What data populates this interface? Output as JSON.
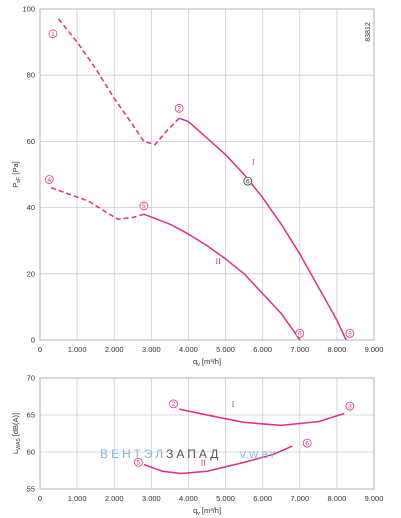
{
  "figure_id": "83812",
  "watermark": {
    "part1": "ВЕНТЭЛ",
    "part2": "ЗАПАД",
    "part3": "V.W.BY",
    "color1": "#7fb8e0",
    "color2": "#555555"
  },
  "colors": {
    "curve": "#d63384",
    "grid": "#cccccc",
    "axis": "#333333"
  },
  "chart_data": [
    {
      "type": "line",
      "ylabel": "P",
      "ylabel_sub": "sF",
      "ylabel_unit": "[Pa]",
      "xlabel": "q",
      "xlabel_sub": "v",
      "xlabel_unit": "[m³/h]",
      "xlim": [
        0,
        9000
      ],
      "ylim": [
        0,
        100
      ],
      "xticks": [
        0,
        1000,
        2000,
        3000,
        4000,
        5000,
        6000,
        7000,
        8000,
        9000
      ],
      "xtick_labels": [
        "0",
        "1.000",
        "2.000",
        "3.000",
        "4.000",
        "5.000",
        "6.000",
        "7.000",
        "8.000",
        "9.000"
      ],
      "yticks": [
        0,
        20,
        40,
        60,
        80,
        100
      ],
      "ytick_labels": [
        "0",
        "20",
        "40",
        "60",
        "80",
        "100"
      ],
      "grid": true,
      "series": [
        {
          "name": "I",
          "style": "dashed",
          "points": [
            [
              500,
              97
            ],
            [
              1000,
              90
            ],
            [
              1500,
              82
            ],
            [
              2000,
              73
            ],
            [
              2500,
              65
            ],
            [
              2800,
              60
            ],
            [
              3100,
              59
            ],
            [
              3400,
              63
            ],
            [
              3750,
              67
            ]
          ]
        },
        {
          "name": "I",
          "style": "solid",
          "points": [
            [
              3750,
              67
            ],
            [
              4000,
              66
            ],
            [
              4500,
              61
            ],
            [
              5000,
              56
            ],
            [
              5500,
              50
            ],
            [
              6000,
              43
            ],
            [
              6500,
              35
            ],
            [
              7000,
              26
            ],
            [
              7500,
              16
            ],
            [
              8000,
              6
            ],
            [
              8250,
              0
            ]
          ]
        },
        {
          "name": "II",
          "style": "dashed",
          "points": [
            [
              300,
              46
            ],
            [
              800,
              44
            ],
            [
              1300,
              42
            ],
            [
              1800,
              38.5
            ],
            [
              2100,
              36.5
            ],
            [
              2500,
              37
            ],
            [
              2800,
              38
            ]
          ]
        },
        {
          "name": "II",
          "style": "solid",
          "points": [
            [
              2800,
              38
            ],
            [
              3500,
              35
            ],
            [
              4000,
              32
            ],
            [
              4500,
              28.5
            ],
            [
              5000,
              24.5
            ],
            [
              5500,
              20
            ],
            [
              6000,
              14
            ],
            [
              6500,
              8
            ],
            [
              6850,
              2.5
            ],
            [
              7000,
              0
            ]
          ]
        }
      ],
      "markers": [
        {
          "label": "1",
          "x": 350,
          "y": 92.5
        },
        {
          "label": "2",
          "x": 3750,
          "y": 70
        },
        {
          "label": "3",
          "x": 8350,
          "y": 2
        },
        {
          "label": "4",
          "x": 250,
          "y": 48.5
        },
        {
          "label": "5",
          "x": 2800,
          "y": 40.5
        },
        {
          "label": "6",
          "x": 7000,
          "y": 2
        }
      ],
      "operating_point": {
        "label": "6",
        "x": 5600,
        "y": 48
      },
      "curve_labels": [
        {
          "text": "I",
          "x": 5750,
          "y": 53
        },
        {
          "text": "II",
          "x": 4800,
          "y": 23
        }
      ]
    },
    {
      "type": "line",
      "ylabel": "L",
      "ylabel_sub": "WA5",
      "ylabel_unit": "[dB(A)]",
      "xlabel": "q",
      "xlabel_sub": "v",
      "xlabel_unit": "[m³/h]",
      "xlim": [
        0,
        9000
      ],
      "ylim": [
        55,
        70
      ],
      "xticks": [
        0,
        1000,
        2000,
        3000,
        4000,
        5000,
        6000,
        7000,
        8000,
        9000
      ],
      "xtick_labels": [
        "0",
        "1.000",
        "2.000",
        "3.000",
        "4.000",
        "5.000",
        "6.000",
        "7.000",
        "8.000",
        "9.000"
      ],
      "yticks": [
        55,
        60,
        65,
        70
      ],
      "ytick_labels": [
        "55",
        "60",
        "65",
        "70"
      ],
      "grid": true,
      "series": [
        {
          "name": "I",
          "style": "solid",
          "points": [
            [
              3750,
              65.8
            ],
            [
              4500,
              65
            ],
            [
              5500,
              64
            ],
            [
              6500,
              63.6
            ],
            [
              7500,
              64.1
            ],
            [
              8200,
              65.2
            ]
          ]
        },
        {
          "name": "II",
          "style": "solid",
          "points": [
            [
              2800,
              58.3
            ],
            [
              3300,
              57.4
            ],
            [
              3800,
              57.1
            ],
            [
              4500,
              57.4
            ],
            [
              5500,
              58.6
            ],
            [
              6300,
              59.7
            ],
            [
              6800,
              60.8
            ]
          ]
        }
      ],
      "markers": [
        {
          "label": "2",
          "x": 3600,
          "y": 66.5
        },
        {
          "label": "3",
          "x": 8350,
          "y": 66.2
        },
        {
          "label": "5",
          "x": 2650,
          "y": 58.6
        },
        {
          "label": "6",
          "x": 7200,
          "y": 61.2
        }
      ],
      "curve_labels": [
        {
          "text": "I",
          "x": 5200,
          "y": 66.1
        },
        {
          "text": "II",
          "x": 4400,
          "y": 58.2
        }
      ]
    }
  ]
}
